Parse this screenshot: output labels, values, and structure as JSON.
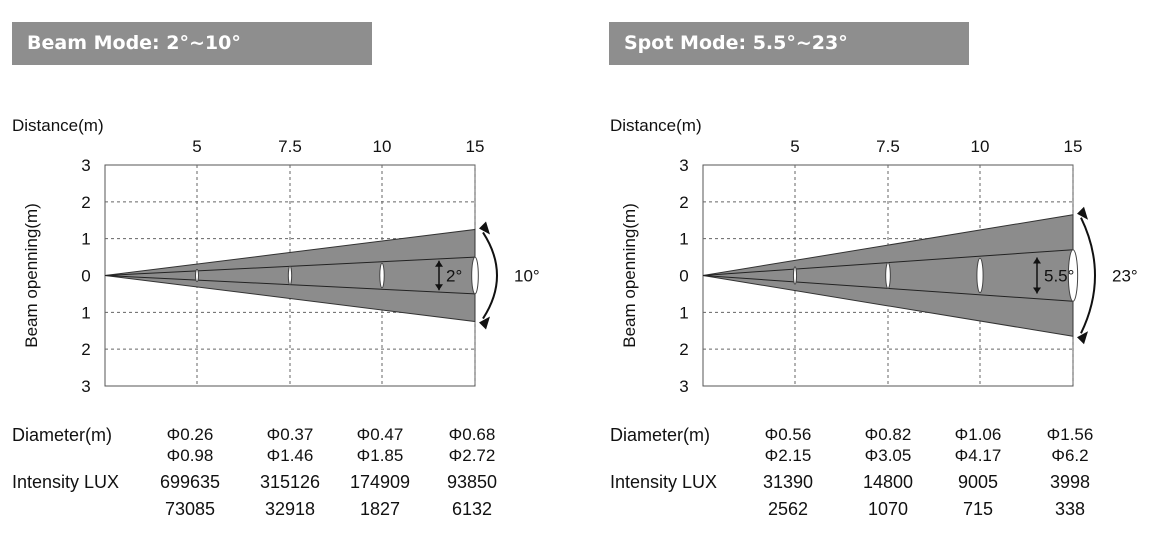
{
  "panels": [
    {
      "title": "Beam Mode: 2°~10°",
      "distance_label": "Distance(m)",
      "y_axis_label": "Beam openning(m)",
      "diameter_label": "Diameter(m)",
      "intensity_label": "Intensity LUX",
      "inner_angle_label": "2°",
      "outer_angle_label": "10°",
      "beam_color": "#8c8c8c",
      "chart_data": {
        "type": "diagram",
        "distances": [
          "5",
          "7.5",
          "10",
          "15"
        ],
        "y_ticks": [
          "3",
          "2",
          "1",
          "0",
          "1",
          "2",
          "3"
        ],
        "inner_angle_deg": 2,
        "outer_angle_deg": 10,
        "outer_half_width_at_15m": 1.25,
        "inner_half_width_at_15m": 0.5,
        "diameter_inner": [
          "Φ0.26",
          "Φ0.37",
          "Φ0.47",
          "Φ0.68"
        ],
        "diameter_outer": [
          "Φ0.98",
          "Φ1.46",
          "Φ1.85",
          "Φ2.72"
        ],
        "intensity_inner": [
          "699635",
          "315126",
          "174909",
          "93850"
        ],
        "intensity_outer": [
          "73085",
          "32918",
          "1827",
          "6132"
        ]
      }
    },
    {
      "title": "Spot Mode: 5.5°~23°",
      "distance_label": "Distance(m)",
      "y_axis_label": "Beam openning(m)",
      "diameter_label": "Diameter(m)",
      "intensity_label": "Intensity LUX",
      "inner_angle_label": "5.5°",
      "outer_angle_label": "23°",
      "beam_color": "#8c8c8c",
      "chart_data": {
        "type": "diagram",
        "distances": [
          "5",
          "7.5",
          "10",
          "15"
        ],
        "y_ticks": [
          "3",
          "2",
          "1",
          "0",
          "1",
          "2",
          "3"
        ],
        "inner_angle_deg": 5.5,
        "outer_angle_deg": 23,
        "outer_half_width_at_15m": 1.65,
        "inner_half_width_at_15m": 0.7,
        "diameter_inner": [
          "Φ0.56",
          "Φ0.82",
          "Φ1.06",
          "Φ1.56"
        ],
        "diameter_outer": [
          "Φ2.15",
          "Φ3.05",
          "Φ4.17",
          "Φ6.2"
        ],
        "intensity_inner": [
          "31390",
          "14800",
          "9005",
          "3998"
        ],
        "intensity_outer": [
          "2562",
          "1070",
          "715",
          "338"
        ]
      }
    }
  ]
}
